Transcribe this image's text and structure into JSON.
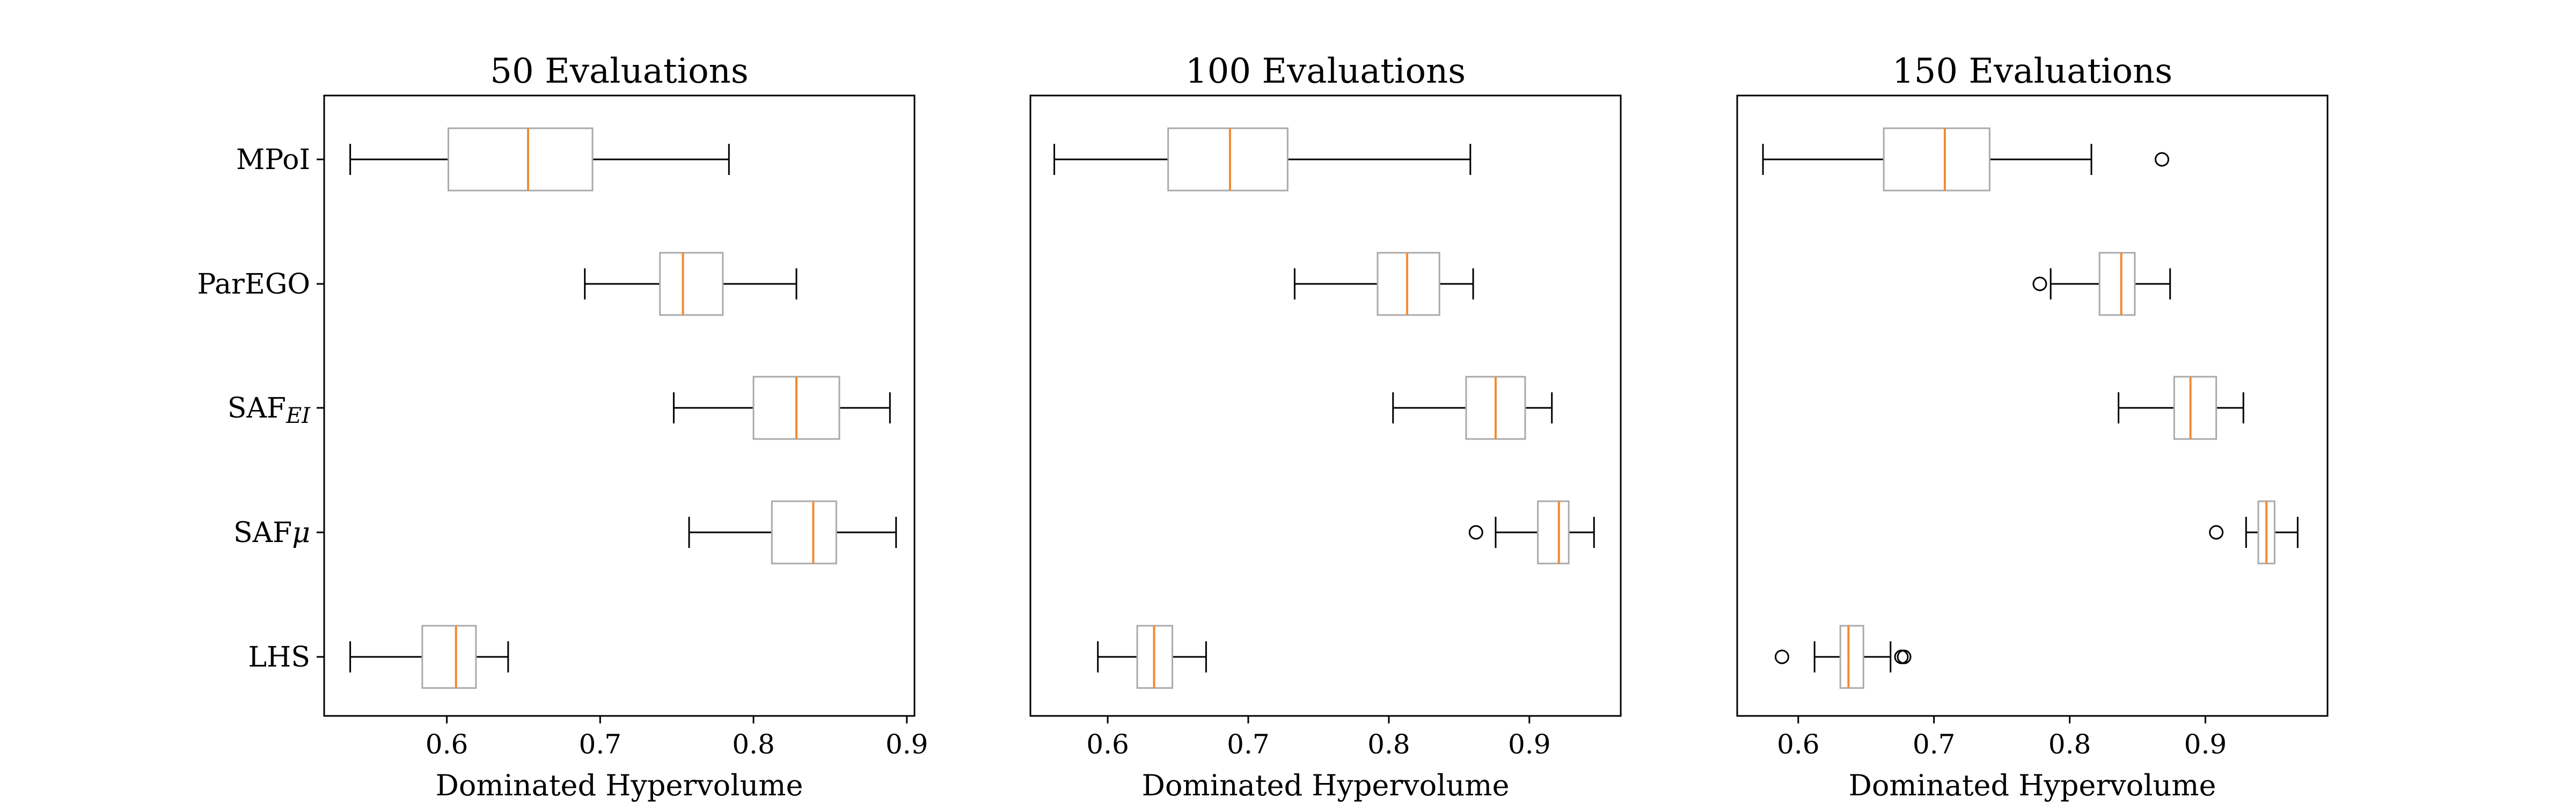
{
  "chart_data": [
    {
      "type": "boxplot",
      "title": "50 Evaluations",
      "xlabel": "Dominated Hypervolume",
      "xlim": [
        0.52,
        0.905
      ],
      "xticks": [
        0.6,
        0.7,
        0.8,
        0.9
      ],
      "xtick_labels": [
        "0.6",
        "0.7",
        "0.8",
        "0.9"
      ],
      "categories": [
        "MPoI",
        "ParEGO",
        "SAF_EI",
        "SAF_μ",
        "LHS"
      ],
      "boxes": [
        {
          "category": "MPoI",
          "whisker_low": 0.537,
          "q1": 0.601,
          "median": 0.653,
          "q3": 0.695,
          "whisker_high": 0.784,
          "outliers": []
        },
        {
          "category": "ParEGO",
          "whisker_low": 0.69,
          "q1": 0.739,
          "median": 0.754,
          "q3": 0.78,
          "whisker_high": 0.828,
          "outliers": []
        },
        {
          "category": "SAF_EI",
          "whisker_low": 0.748,
          "q1": 0.8,
          "median": 0.828,
          "q3": 0.856,
          "whisker_high": 0.889,
          "outliers": []
        },
        {
          "category": "SAF_μ",
          "whisker_low": 0.758,
          "q1": 0.812,
          "median": 0.839,
          "q3": 0.854,
          "whisker_high": 0.893,
          "outliers": []
        },
        {
          "category": "LHS",
          "whisker_low": 0.537,
          "q1": 0.584,
          "median": 0.606,
          "q3": 0.619,
          "whisker_high": 0.64,
          "outliers": []
        }
      ],
      "show_ylabels": true
    },
    {
      "type": "boxplot",
      "title": "100 Evaluations",
      "xlabel": "Dominated Hypervolume",
      "xlim": [
        0.545,
        0.965
      ],
      "xticks": [
        0.6,
        0.7,
        0.8,
        0.9
      ],
      "xtick_labels": [
        "0.6",
        "0.7",
        "0.8",
        "0.9"
      ],
      "categories": [
        "MPoI",
        "ParEGO",
        "SAF_EI",
        "SAF_μ",
        "LHS"
      ],
      "boxes": [
        {
          "category": "MPoI",
          "whisker_low": 0.562,
          "q1": 0.643,
          "median": 0.687,
          "q3": 0.728,
          "whisker_high": 0.858,
          "outliers": []
        },
        {
          "category": "ParEGO",
          "whisker_low": 0.733,
          "q1": 0.792,
          "median": 0.813,
          "q3": 0.836,
          "whisker_high": 0.86,
          "outliers": []
        },
        {
          "category": "SAF_EI",
          "whisker_low": 0.803,
          "q1": 0.855,
          "median": 0.876,
          "q3": 0.897,
          "whisker_high": 0.916,
          "outliers": []
        },
        {
          "category": "SAF_μ",
          "whisker_low": 0.876,
          "q1": 0.906,
          "median": 0.921,
          "q3": 0.928,
          "whisker_high": 0.946,
          "outliers": [
            0.862
          ]
        },
        {
          "category": "LHS",
          "whisker_low": 0.593,
          "q1": 0.621,
          "median": 0.633,
          "q3": 0.646,
          "whisker_high": 0.67,
          "outliers": []
        }
      ],
      "show_ylabels": false
    },
    {
      "type": "boxplot",
      "title": "150 Evaluations",
      "xlabel": "Dominated Hypervolume",
      "xlim": [
        0.555,
        0.99
      ],
      "xticks": [
        0.6,
        0.7,
        0.8,
        0.9
      ],
      "xtick_labels": [
        "0.6",
        "0.7",
        "0.8",
        "0.9"
      ],
      "categories": [
        "MPoI",
        "ParEGO",
        "SAF_EI",
        "SAF_μ",
        "LHS"
      ],
      "boxes": [
        {
          "category": "MPoI",
          "whisker_low": 0.574,
          "q1": 0.663,
          "median": 0.708,
          "q3": 0.741,
          "whisker_high": 0.816,
          "outliers": [
            0.868
          ]
        },
        {
          "category": "ParEGO",
          "whisker_low": 0.786,
          "q1": 0.822,
          "median": 0.838,
          "q3": 0.848,
          "whisker_high": 0.874,
          "outliers": [
            0.778
          ]
        },
        {
          "category": "SAF_EI",
          "whisker_low": 0.836,
          "q1": 0.877,
          "median": 0.889,
          "q3": 0.908,
          "whisker_high": 0.928,
          "outliers": []
        },
        {
          "category": "SAF_μ",
          "whisker_low": 0.93,
          "q1": 0.939,
          "median": 0.945,
          "q3": 0.951,
          "whisker_high": 0.968,
          "outliers": [
            0.908
          ]
        },
        {
          "category": "LHS",
          "whisker_low": 0.612,
          "q1": 0.631,
          "median": 0.637,
          "q3": 0.648,
          "whisker_high": 0.668,
          "outliers": [
            0.588,
            0.676,
            0.678
          ]
        }
      ],
      "show_ylabels": false
    }
  ],
  "colors": {
    "box": "#aaaaaa",
    "median": "#f28a30",
    "whisker": "#000000",
    "frame": "#000000"
  }
}
